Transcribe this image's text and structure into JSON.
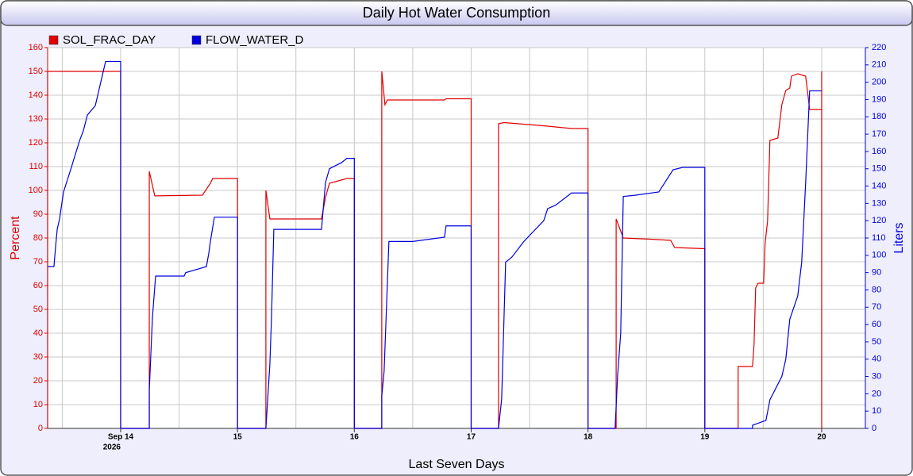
{
  "chart_data": {
    "type": "line",
    "title": "Daily Hot Water Consumption",
    "xlabel": "Last Seven Days",
    "ylabel": "Percent",
    "y2label": "Liters",
    "xlim": [
      13.375,
      20.374
    ],
    "xticks": [
      {
        "value": 14,
        "label": "Sep 14"
      },
      15,
      16,
      17,
      18,
      19,
      20
    ],
    "x_year_label": "2026",
    "xgrid": [
      13.5,
      14,
      14.5,
      15,
      15.5,
      16,
      16.5,
      17,
      17.5,
      18,
      18.5,
      19,
      19.5,
      20
    ],
    "ylim": [
      0,
      160
    ],
    "yticks": [
      0,
      10,
      20,
      30,
      40,
      50,
      60,
      70,
      80,
      90,
      100,
      110,
      120,
      130,
      140,
      150,
      160
    ],
    "y2lim": [
      0,
      220
    ],
    "y2ticks": [
      0,
      10,
      20,
      30,
      40,
      50,
      60,
      70,
      80,
      90,
      100,
      110,
      120,
      130,
      140,
      150,
      160,
      170,
      180,
      190,
      200,
      210,
      220
    ],
    "grid": true,
    "legend": "top-left",
    "series": [
      {
        "name": "SOL_FRAC_DAY",
        "color": "#e00000",
        "axis": "y",
        "x": [
          13.375,
          13.375,
          14,
          14,
          14.245,
          14.245,
          14.292,
          14.7,
          14.768,
          14.788,
          15,
          15,
          15.243,
          15.243,
          15.277,
          15.719,
          15.753,
          15.787,
          15.936,
          16,
          16,
          16.235,
          16.235,
          16.262,
          16.283,
          16.772,
          16.785,
          17,
          17,
          17.234,
          17.234,
          17.281,
          17.655,
          17.859,
          18,
          18,
          18.241,
          18.241,
          18.302,
          18.538,
          18.708,
          18.742,
          19,
          19,
          19.285,
          19.285,
          19.408,
          19.421,
          19.435,
          19.455,
          19.503,
          19.516,
          19.537,
          19.557,
          19.625,
          19.659,
          19.693,
          19.727,
          19.741,
          19.795,
          19.863,
          19.897,
          20,
          20,
          20
        ],
        "values": [
          0,
          150,
          150,
          0,
          0,
          108,
          97.7,
          98,
          103,
          105,
          105,
          0,
          0,
          100,
          88,
          88,
          97,
          103,
          105,
          105,
          0,
          0,
          150,
          136,
          138,
          138,
          138.5,
          138.5,
          0,
          0,
          128,
          128.5,
          127,
          126,
          126,
          0,
          0,
          88,
          80,
          79.5,
          79,
          76,
          75.5,
          0,
          0,
          26,
          26,
          35,
          59,
          61,
          61,
          78,
          87,
          121,
          122,
          136,
          142,
          143,
          148,
          149,
          148,
          134,
          134,
          150,
          0
        ]
      },
      {
        "name": "FLOW_WATER_D",
        "color": "#0000e0",
        "axis": "y2",
        "x": [
          13.375,
          13.429,
          13.443,
          13.457,
          13.477,
          13.511,
          13.579,
          13.647,
          13.681,
          13.715,
          13.783,
          13.871,
          14,
          14,
          14.245,
          14.245,
          14.272,
          14.299,
          14.543,
          14.557,
          14.734,
          14.754,
          14.768,
          14.802,
          15,
          15,
          15.243,
          15.277,
          15.291,
          15.311,
          15.719,
          15.753,
          15.787,
          15.889,
          15.936,
          16,
          16,
          16.235,
          16.235,
          16.255,
          16.296,
          16.5,
          16.772,
          16.785,
          17,
          17,
          17.234,
          17.261,
          17.295,
          17.349,
          17.451,
          17.621,
          17.655,
          17.723,
          17.859,
          18,
          18,
          18.232,
          18.253,
          18.28,
          18.302,
          18.402,
          18.606,
          18.728,
          18.81,
          19,
          19,
          19.408,
          19.408,
          19.523,
          19.557,
          19.659,
          19.693,
          19.727,
          19.795,
          19.829,
          19.863,
          19.897,
          20
        ],
        "values": [
          93.5,
          93.5,
          105,
          115,
          121,
          136.6,
          151,
          166,
          172,
          181,
          186.5,
          212,
          212,
          0,
          0,
          22,
          64,
          88,
          88,
          90,
          93.5,
          101,
          108,
          122,
          122,
          0,
          0,
          37,
          64,
          115,
          115,
          142,
          150,
          153.5,
          156,
          156,
          0,
          0,
          19,
          33,
          108,
          108,
          110.5,
          117,
          117,
          0,
          0,
          17,
          96,
          99,
          108,
          120,
          127,
          129,
          136,
          136,
          0,
          0,
          30,
          55,
          134,
          134.7,
          136.6,
          149.4,
          150.8,
          150.8,
          0,
          0,
          1.8,
          4.6,
          16.5,
          30,
          40,
          63,
          76.5,
          96,
          142,
          195,
          195
        ]
      }
    ]
  }
}
